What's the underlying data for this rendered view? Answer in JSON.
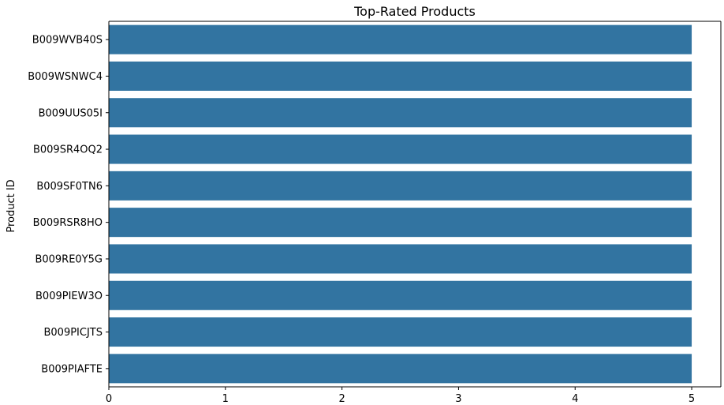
{
  "chart_data": {
    "type": "bar",
    "orientation": "horizontal",
    "title": "Top-Rated Products",
    "xlabel": "",
    "ylabel": "Product ID",
    "categories": [
      "B009WVB40S",
      "B009WSNWC4",
      "B009UUS05I",
      "B009SR4OQ2",
      "B009SF0TN6",
      "B009RSR8HO",
      "B009RE0Y5G",
      "B009PIEW3O",
      "B009PICJTS",
      "B009PIAFTE"
    ],
    "values": [
      5,
      5,
      5,
      5,
      5,
      5,
      5,
      5,
      5,
      5
    ],
    "xlim": [
      0,
      5.25
    ],
    "xticks": [
      0,
      1,
      2,
      3,
      4,
      5
    ],
    "grid": false,
    "bar_color": "#3274a1"
  }
}
